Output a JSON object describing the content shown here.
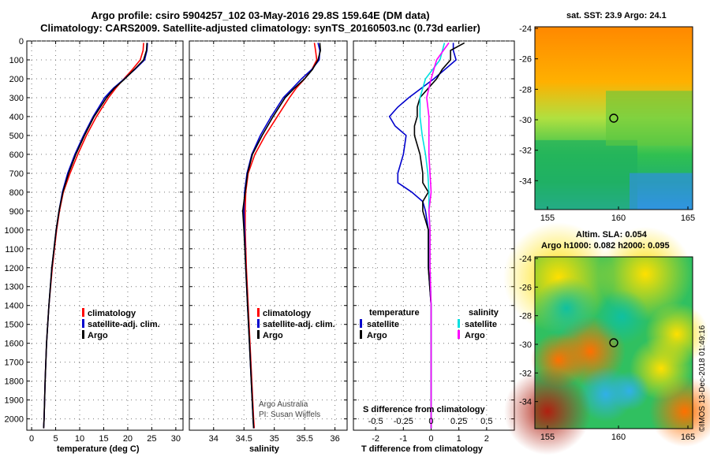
{
  "header": {
    "line1": "Argo profile: csiro 5904257_102 03-May-2016 29.8S 159.64E (DM data)",
    "line2": "Climatology: CARS2009. Satellite-adjusted climatology: synTS_20160503.nc (0.73d earlier)"
  },
  "colors": {
    "climatology": "#ff0000",
    "satellite": "#0000cc",
    "argo": "#000000",
    "sal_satellite": "#00e0e0",
    "sal_argo": "#ff00ff"
  },
  "chart_data": [
    {
      "type": "line",
      "name": "temperature",
      "xlabel": "temperature (deg C)",
      "xlim": [
        -1,
        31.5
      ],
      "ylim": [
        0,
        2060
      ],
      "xticks": [
        0,
        5,
        10,
        15,
        20,
        25,
        30
      ],
      "xticklabels": [
        "0",
        "5",
        "10",
        "15",
        "20",
        "25",
        "30"
      ],
      "yticks": [
        0,
        100,
        200,
        300,
        400,
        500,
        600,
        700,
        800,
        900,
        1000,
        1100,
        1200,
        1300,
        1400,
        1500,
        1600,
        1700,
        1800,
        1900,
        2000
      ],
      "yticklabels": [
        "0",
        "100",
        "200",
        "300",
        "400",
        "500",
        "600",
        "700",
        "800",
        "900",
        "1000",
        "1100",
        "1200",
        "1300",
        "1400",
        "1500",
        "1600",
        "1700",
        "1800",
        "1900",
        "2000"
      ],
      "legend": [
        "climatology",
        "satellite-adj. clim.",
        "Argo"
      ],
      "series": [
        {
          "name": "climatology",
          "depth": [
            10,
            50,
            100,
            150,
            200,
            250,
            300,
            400,
            500,
            600,
            700,
            800,
            900,
            1000,
            1200,
            1400,
            1600,
            1800,
            2000,
            2050
          ],
          "values": [
            23.3,
            23.2,
            22.6,
            21.0,
            19.2,
            17.5,
            16.0,
            13.5,
            11.4,
            9.6,
            8.0,
            6.6,
            5.8,
            5.2,
            4.3,
            3.6,
            3.1,
            2.8,
            2.6,
            2.5
          ]
        },
        {
          "name": "satellite-adj. clim.",
          "depth": [
            10,
            50,
            100,
            150,
            200,
            250,
            300,
            400,
            500,
            600,
            700,
            800,
            900,
            1000,
            1200,
            1400,
            1600,
            1800,
            2000,
            2050
          ],
          "values": [
            24.1,
            24.0,
            23.5,
            21.5,
            19.3,
            17.0,
            15.2,
            12.8,
            10.8,
            9.0,
            7.5,
            6.4,
            5.7,
            5.1,
            4.2,
            3.6,
            3.1,
            2.8,
            2.6,
            2.5
          ]
        },
        {
          "name": "Argo",
          "depth": [
            10,
            50,
            100,
            150,
            200,
            250,
            300,
            400,
            500,
            600,
            700,
            800,
            900,
            1000,
            1200,
            1400,
            1600,
            1800,
            2000,
            2050
          ],
          "values": [
            24.0,
            23.9,
            23.3,
            21.4,
            19.4,
            17.2,
            15.6,
            13.0,
            11.0,
            9.2,
            7.7,
            6.5,
            5.7,
            5.1,
            4.2,
            3.6,
            3.1,
            2.8,
            2.6,
            2.5
          ]
        }
      ]
    },
    {
      "type": "line",
      "name": "salinity",
      "xlabel": "salinity",
      "xlim": [
        33.6,
        36.2
      ],
      "ylim": [
        0,
        2060
      ],
      "xticks": [
        34,
        34.5,
        35,
        35.5,
        36
      ],
      "xticklabels": [
        "34",
        "34.5",
        "35",
        "35.5",
        "36"
      ],
      "legend": [
        "climatology",
        "satellite-adj. clim.",
        "Argo"
      ],
      "credit": [
        "Argo Australia",
        "PI: Susan Wijffels"
      ],
      "series": [
        {
          "name": "climatology",
          "depth": [
            10,
            50,
            100,
            150,
            200,
            250,
            300,
            400,
            500,
            600,
            700,
            800,
            900,
            1000,
            1200,
            1400,
            1600,
            1800,
            2000,
            2050
          ],
          "values": [
            35.66,
            35.68,
            35.7,
            35.62,
            35.5,
            35.36,
            35.25,
            35.05,
            34.85,
            34.68,
            34.57,
            34.53,
            34.52,
            34.52,
            34.54,
            34.57,
            34.6,
            34.63,
            34.66,
            34.67
          ]
        },
        {
          "name": "satellite-adj. clim.",
          "depth": [
            10,
            50,
            100,
            150,
            200,
            250,
            300,
            400,
            500,
            600,
            700,
            800,
            900,
            1000,
            1200,
            1400,
            1600,
            1800,
            2000,
            2050
          ],
          "values": [
            35.72,
            35.75,
            35.74,
            35.62,
            35.45,
            35.3,
            35.15,
            34.95,
            34.77,
            34.63,
            34.55,
            34.51,
            34.5,
            34.51,
            34.53,
            34.56,
            34.59,
            34.62,
            34.65,
            34.66
          ]
        },
        {
          "name": "Argo",
          "depth": [
            10,
            50,
            100,
            150,
            200,
            250,
            300,
            400,
            500,
            600,
            700,
            800,
            900,
            1000,
            1200,
            1400,
            1600,
            1800,
            2000,
            2050
          ],
          "values": [
            35.75,
            35.76,
            35.72,
            35.63,
            35.5,
            35.33,
            35.18,
            34.98,
            34.8,
            34.64,
            34.56,
            34.52,
            34.48,
            34.5,
            34.53,
            34.56,
            34.59,
            34.62,
            34.65,
            34.66
          ]
        }
      ]
    },
    {
      "type": "line",
      "name": "difference",
      "xlabel": "T difference from climatology",
      "xlabel2": "S difference from climatology",
      "xlim": [
        -2.8,
        3.0
      ],
      "ylim": [
        0,
        2060
      ],
      "xticks": [
        -2,
        -1,
        0,
        1,
        2
      ],
      "xticklabels": [
        "-2",
        "-1",
        "0",
        "1",
        "2"
      ],
      "sticks_label": [
        "-0.5",
        "-0.25",
        "0",
        "0.25",
        "0.5"
      ],
      "legend_temp_title": "temperature",
      "legend_sal_title": "salinity",
      "legend_temp": [
        "satellite",
        "Argo"
      ],
      "legend_sal": [
        "satellite",
        "Argo"
      ],
      "series": [
        {
          "name": "temperature satellite",
          "depth": [
            10,
            50,
            100,
            150,
            200,
            300,
            350,
            400,
            450,
            500,
            600,
            700,
            750,
            800,
            850,
            900,
            1000,
            1200,
            1400,
            1600,
            1800,
            2000,
            2050
          ],
          "values": [
            0.8,
            0.8,
            0.9,
            0.5,
            0.1,
            -0.8,
            -1.2,
            -1.5,
            -1.3,
            -0.9,
            -1.0,
            -1.2,
            -1.2,
            -0.7,
            -0.3,
            -0.2,
            -0.1,
            -0.1,
            0,
            0,
            0,
            0,
            0
          ]
        },
        {
          "name": "temperature Argo",
          "depth": [
            10,
            50,
            100,
            150,
            200,
            300,
            350,
            400,
            450,
            500,
            600,
            700,
            750,
            800,
            850,
            900,
            1000,
            1200,
            1400,
            1600,
            1800,
            2000,
            2050
          ],
          "values": [
            1.2,
            0.7,
            0.7,
            0.4,
            0.2,
            -0.4,
            -0.5,
            -0.5,
            -0.6,
            -0.6,
            -0.4,
            -0.3,
            -0.3,
            -0.1,
            -0.3,
            -0.3,
            -0.1,
            -0.1,
            0,
            0,
            0,
            0,
            0
          ]
        },
        {
          "name": "salinity satellite",
          "depth": [
            10,
            100,
            200,
            300,
            400,
            500,
            600,
            700,
            800,
            900,
            1000,
            1200,
            1400,
            1600,
            1800,
            2000,
            2050
          ],
          "values": [
            0.12,
            0.08,
            -0.05,
            -0.1,
            -0.1,
            -0.08,
            -0.05,
            -0.03,
            -0.02,
            -0.02,
            -0.01,
            -0.01,
            0,
            0,
            0,
            0,
            0
          ]
        },
        {
          "name": "salinity Argo",
          "depth": [
            10,
            100,
            200,
            300,
            400,
            500,
            600,
            700,
            800,
            900,
            1000,
            1200,
            1400,
            1600,
            1800,
            2000,
            2050
          ],
          "values": [
            0.16,
            0.05,
            0.0,
            -0.04,
            -0.02,
            -0.02,
            -0.02,
            -0.01,
            0.0,
            -0.02,
            -0.01,
            -0.01,
            0,
            0,
            0,
            0,
            0
          ]
        }
      ]
    }
  ],
  "maps": {
    "sst": {
      "title": "sat. SST: 23.9 Argo: 24.1",
      "yticks": [
        "-24",
        "-26",
        "-28",
        "-30",
        "-32",
        "-34"
      ],
      "xticks": [
        "155",
        "160",
        "165"
      ]
    },
    "sla": {
      "title1": "Altim. SLA: 0.054",
      "title2": "Argo h1000: 0.082 h2000: 0.095",
      "yticks": [
        "-24",
        "-26",
        "-28",
        "-30",
        "-32",
        "-34"
      ],
      "xticks": [
        "155",
        "160",
        "165"
      ]
    }
  },
  "stamp": "©IMOS 13-Dec-2018 01:49:16"
}
